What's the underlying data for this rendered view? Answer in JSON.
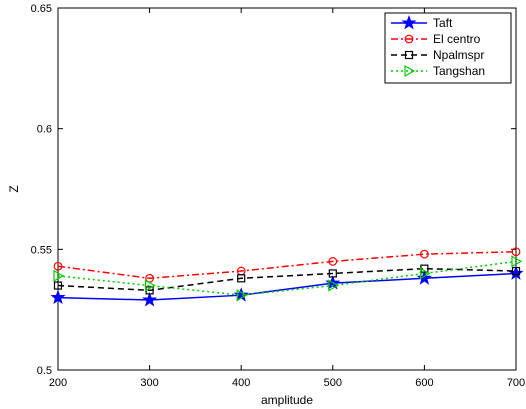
{
  "chart_data": {
    "type": "line",
    "xlabel": "amplitude",
    "ylabel": "Z",
    "xlim": [
      200,
      700
    ],
    "ylim": [
      0.5,
      0.65
    ],
    "xticks": [
      "200",
      "300",
      "400",
      "500",
      "600",
      "700"
    ],
    "yticks": [
      "0.5",
      "0.55",
      "0.6",
      "0.65"
    ],
    "legend_position": "top-right",
    "x": [
      200,
      300,
      400,
      500,
      600,
      700
    ],
    "series": [
      {
        "name": "Taft",
        "values": [
          0.53,
          0.529,
          0.531,
          0.536,
          0.538,
          0.54
        ],
        "color": "#0000ff",
        "dash": "",
        "marker": "star"
      },
      {
        "name": "El centro",
        "values": [
          0.543,
          0.538,
          0.541,
          0.545,
          0.548,
          0.549
        ],
        "color": "#ff0000",
        "dash": "7,3,2,3",
        "marker": "circle"
      },
      {
        "name": "Npalmspr",
        "values": [
          0.535,
          0.533,
          0.538,
          0.54,
          0.542,
          0.541
        ],
        "color": "#000000",
        "dash": "6,4",
        "marker": "square"
      },
      {
        "name": "Tangshan",
        "values": [
          0.539,
          0.535,
          0.531,
          0.535,
          0.54,
          0.545
        ],
        "color": "#00cc00",
        "dash": "2,3",
        "marker": "triangle"
      }
    ]
  }
}
